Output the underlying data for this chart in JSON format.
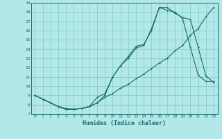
{
  "xlabel": "Humidex (Indice chaleur)",
  "bg_color": "#b2e8e8",
  "grid_color": "#7ec8c8",
  "line_color": "#1a6b6b",
  "xlim": [
    -0.5,
    23.5
  ],
  "ylim": [
    7,
    19
  ],
  "xticks": [
    0,
    1,
    2,
    3,
    4,
    5,
    6,
    7,
    8,
    9,
    10,
    11,
    12,
    13,
    14,
    15,
    16,
    17,
    18,
    19,
    20,
    21,
    22,
    23
  ],
  "yticks": [
    7,
    8,
    9,
    10,
    11,
    12,
    13,
    14,
    15,
    16,
    17,
    18,
    19
  ],
  "line1_x": [
    0,
    1,
    2,
    3,
    4,
    5,
    6,
    7,
    8,
    9,
    10,
    11,
    12,
    13,
    14,
    15,
    16,
    17,
    18,
    19,
    20,
    21,
    22,
    23
  ],
  "line1_y": [
    9.0,
    8.6,
    8.2,
    7.8,
    7.5,
    7.5,
    7.6,
    7.8,
    8.2,
    8.8,
    9.2,
    9.8,
    10.2,
    10.8,
    11.3,
    11.9,
    12.5,
    13.0,
    13.8,
    14.4,
    15.5,
    16.2,
    17.5,
    18.5
  ],
  "line2_x": [
    0,
    1,
    2,
    3,
    4,
    5,
    6,
    7,
    8,
    9,
    10,
    11,
    12,
    13,
    14,
    15,
    16,
    17,
    18,
    19,
    20,
    21,
    22,
    23
  ],
  "line2_y": [
    9.0,
    8.6,
    8.2,
    7.8,
    7.5,
    7.5,
    7.6,
    7.8,
    8.8,
    9.2,
    11.0,
    12.2,
    13.0,
    14.1,
    14.4,
    16.2,
    18.5,
    18.2,
    18.0,
    17.3,
    14.2,
    11.2,
    10.5,
    10.5
  ],
  "line3_x": [
    0,
    1,
    2,
    3,
    4,
    5,
    6,
    7,
    8,
    9,
    10,
    11,
    12,
    13,
    14,
    15,
    16,
    17,
    18,
    19,
    20,
    21,
    22,
    23
  ],
  "line3_y": [
    9.0,
    8.6,
    8.2,
    7.8,
    7.6,
    7.5,
    7.6,
    7.8,
    8.2,
    9.0,
    11.0,
    12.2,
    13.2,
    14.3,
    14.5,
    16.0,
    18.5,
    18.5,
    17.9,
    17.4,
    17.2,
    14.2,
    11.1,
    10.4
  ]
}
